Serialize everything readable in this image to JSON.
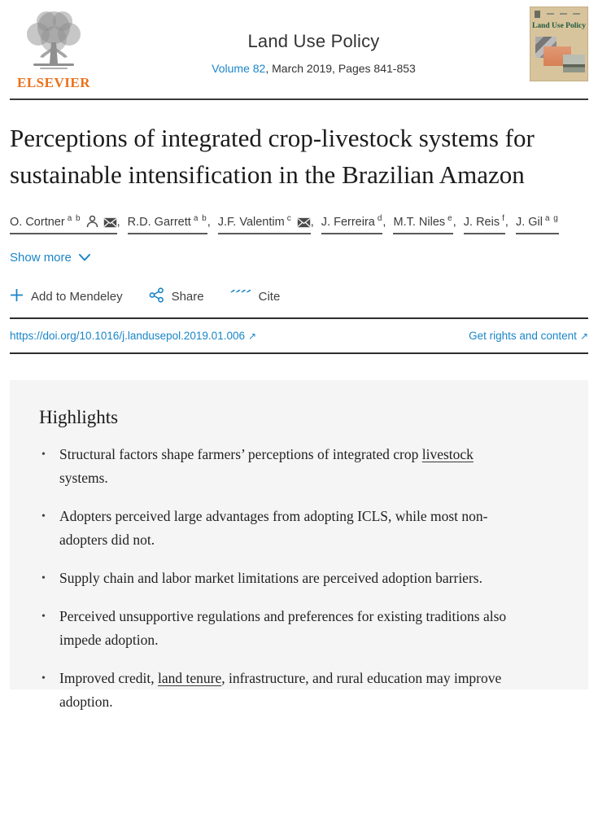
{
  "header": {
    "publisher_wordmark": "ELSEVIER",
    "journal_title": "Land Use Policy",
    "volume_link": "Volume 82",
    "issue_info": ", March 2019, Pages 841-853",
    "cover_title": "Land Use Policy"
  },
  "article": {
    "title": "Perceptions of integrated crop-livestock systems for sustainable intensification in the Brazilian Amazon",
    "authors": [
      {
        "name": "O. Cortner",
        "sup": "a b",
        "person_icon": true,
        "email_icon": true
      },
      {
        "name": "R.D. Garrett",
        "sup": "a b"
      },
      {
        "name": "J.F. Valentim",
        "sup": "c",
        "email_icon": true
      },
      {
        "name": "J. Ferreira",
        "sup": "d"
      },
      {
        "name": "M.T. Niles",
        "sup": "e"
      },
      {
        "name": "J. Reis",
        "sup": "f"
      },
      {
        "name": "J. Gil",
        "sup": "a g"
      }
    ],
    "show_more_label": "Show more",
    "actions": {
      "mendeley_label": "Add to Mendeley",
      "share_label": "Share",
      "cite_label": "Cite"
    },
    "doi_link": "https://doi.org/10.1016/j.landusepol.2019.01.006",
    "rights_link": "Get rights and content"
  },
  "icons": {
    "external_link": "↗",
    "plus": "+"
  },
  "highlights": {
    "heading": "Highlights",
    "items": [
      [
        {
          "t": "Structural factors shape farmers’ perceptions of integrated crop "
        },
        {
          "t": "livestock",
          "u": true
        },
        {
          "t": " systems."
        }
      ],
      [
        {
          "t": "Adopters perceived large advantages from adopting ICLS, while most non-adopters did not."
        }
      ],
      [
        {
          "t": "Supply chain and labor market limitations are perceived adoption barriers."
        }
      ],
      [
        {
          "t": "Perceived unsupportive regulations and preferences for existing traditions also impede adoption."
        }
      ],
      [
        {
          "t": "Improved credit, "
        },
        {
          "t": "land tenure",
          "u": true
        },
        {
          "t": ", infrastructure, and rural education may improve adoption."
        }
      ]
    ]
  },
  "colors": {
    "link_blue": "#1a85c8",
    "elsevier_orange": "#e9711c",
    "highlight_bg": "#f5f5f5",
    "cover_bg": "#d8c49c",
    "rule_dark": "#2e2e2e"
  }
}
